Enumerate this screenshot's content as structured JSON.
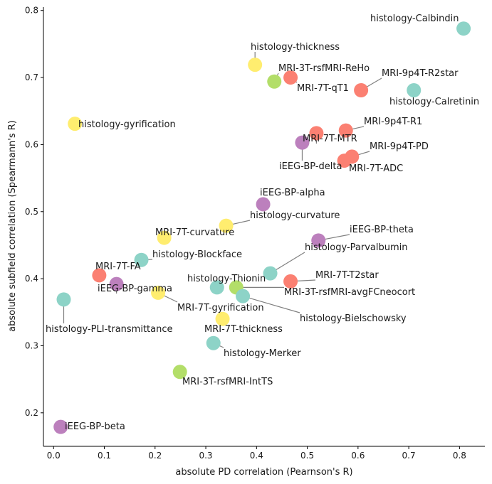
{
  "chart_data": {
    "type": "scatter",
    "xlabel": "absolute PD correlation (Pearnson's R)",
    "ylabel": "absolute subfield correlation (Spearmann's R)",
    "xlim": [
      -0.02,
      0.85
    ],
    "ylim": [
      0.15,
      0.805
    ],
    "xticks": [
      "0.0",
      "0.1",
      "0.2",
      "0.3",
      "0.4",
      "0.5",
      "0.6",
      "0.7",
      "0.8"
    ],
    "yticks": [
      "0.2",
      "0.3",
      "0.4",
      "0.5",
      "0.6",
      "0.7",
      "0.8"
    ],
    "grid": false,
    "category_colors": {
      "histology": "#8dd3c7",
      "histology-stain-alt": "#ffed6f",
      "MRI-7T": "#fb8072",
      "MRI-3T": "#b3de69",
      "iEEG": "#bc80bd"
    },
    "points": [
      {
        "label": "histology-Calbindin",
        "x": 0.808,
        "y": 0.773,
        "color": "#8dd3c7"
      },
      {
        "label": "histology-thickness",
        "x": 0.397,
        "y": 0.719,
        "color": "#ffed6f"
      },
      {
        "label": "MRI-3T-rsfMRI-ReHo",
        "x": 0.435,
        "y": 0.694,
        "color": "#b3de69"
      },
      {
        "label": "MRI-7T-qT1",
        "x": 0.467,
        "y": 0.7,
        "color": "#fb8072"
      },
      {
        "label": "MRI-9p4T-R2star",
        "x": 0.606,
        "y": 0.681,
        "color": "#fb8072"
      },
      {
        "label": "histology-Calretinin",
        "x": 0.71,
        "y": 0.681,
        "color": "#8dd3c7"
      },
      {
        "label": "histology-gyrification",
        "x": 0.042,
        "y": 0.631,
        "color": "#ffed6f"
      },
      {
        "label": "MRI-9p4T-R1",
        "x": 0.576,
        "y": 0.621,
        "color": "#fb8072"
      },
      {
        "label": "MRI-7T-MTR",
        "x": 0.518,
        "y": 0.617,
        "color": "#fb8072"
      },
      {
        "label": "iEEG-BP-delta",
        "x": 0.49,
        "y": 0.603,
        "color": "#bc80bd"
      },
      {
        "label": "MRI-9p4T-PD",
        "x": 0.588,
        "y": 0.582,
        "color": "#fb8072"
      },
      {
        "label": "MRI-7T-ADC",
        "x": 0.573,
        "y": 0.576,
        "color": "#fb8072"
      },
      {
        "label": "iEEG-BP-alpha",
        "x": 0.413,
        "y": 0.511,
        "color": "#bc80bd"
      },
      {
        "label": "histology-curvature",
        "x": 0.34,
        "y": 0.479,
        "color": "#ffed6f"
      },
      {
        "label": "MRI-7T-curvature",
        "x": 0.218,
        "y": 0.461,
        "color": "#ffed6f"
      },
      {
        "label": "iEEG-BP-theta",
        "x": 0.522,
        "y": 0.457,
        "color": "#bc80bd"
      },
      {
        "label": "histology-Parvalbumin",
        "x": 0.427,
        "y": 0.408,
        "color": "#8dd3c7"
      },
      {
        "label": "histology-Blockface",
        "x": 0.173,
        "y": 0.428,
        "color": "#8dd3c7"
      },
      {
        "label": "MRI-7T-FA",
        "x": 0.09,
        "y": 0.405,
        "color": "#fb8072"
      },
      {
        "label": "iEEG-BP-gamma",
        "x": 0.124,
        "y": 0.392,
        "color": "#bc80bd"
      },
      {
        "label": "MRI-7T-T2star",
        "x": 0.467,
        "y": 0.396,
        "color": "#fb8072"
      },
      {
        "label": "histology-Thionin",
        "x": 0.322,
        "y": 0.387,
        "color": "#8dd3c7"
      },
      {
        "label": "MRI-3T-rsfMRI-avgFCneocort",
        "x": 0.36,
        "y": 0.387,
        "color": "#b3de69"
      },
      {
        "label": "histology-Bielschowsky",
        "x": 0.373,
        "y": 0.374,
        "color": "#8dd3c7"
      },
      {
        "label": "MRI-7T-gyrification",
        "x": 0.206,
        "y": 0.379,
        "color": "#ffed6f"
      },
      {
        "label": "histology-PLI-transmittance",
        "x": 0.02,
        "y": 0.369,
        "color": "#8dd3c7"
      },
      {
        "label": "MRI-7T-thickness",
        "x": 0.333,
        "y": 0.34,
        "color": "#ffed6f"
      },
      {
        "label": "histology-Merker",
        "x": 0.315,
        "y": 0.304,
        "color": "#8dd3c7"
      },
      {
        "label": "MRI-3T-rsfMRI-IntTS",
        "x": 0.249,
        "y": 0.261,
        "color": "#b3de69"
      },
      {
        "label": "iEEG-BP-beta",
        "x": 0.014,
        "y": 0.179,
        "color": "#bc80bd"
      }
    ]
  }
}
